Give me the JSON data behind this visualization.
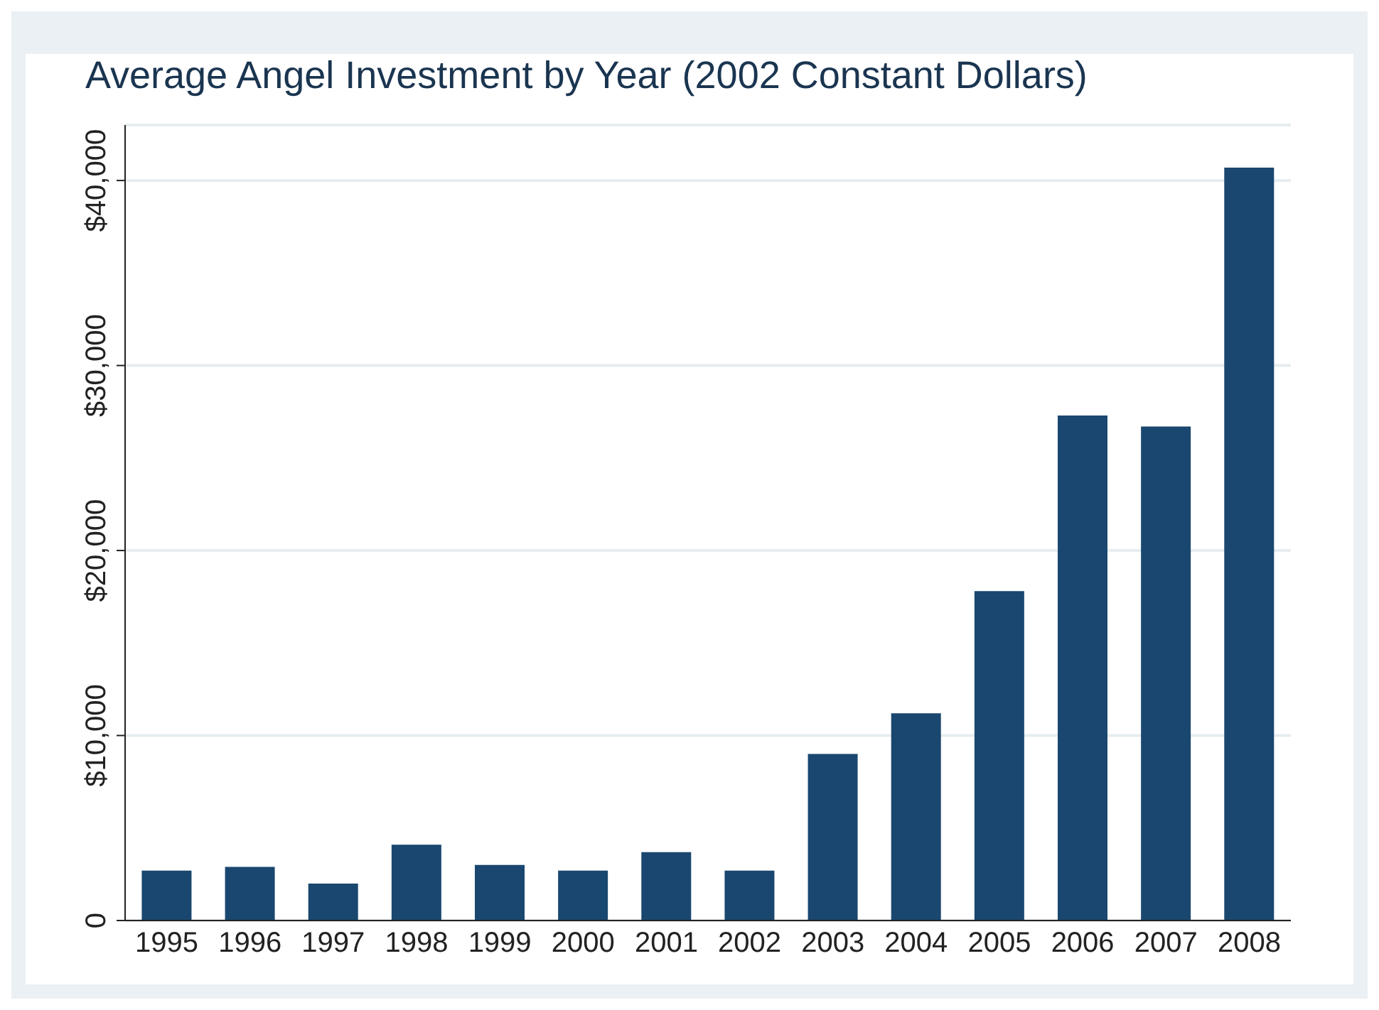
{
  "chart_data": {
    "type": "bar",
    "title": "Average Angel Investment by Year (2002 Constant Dollars)",
    "categories": [
      "1995",
      "1996",
      "1997",
      "1998",
      "1999",
      "2000",
      "2001",
      "2002",
      "2003",
      "2004",
      "2005",
      "2006",
      "2007",
      "2008"
    ],
    "values": [
      2700,
      2900,
      2000,
      4100,
      3000,
      2700,
      3700,
      2700,
      9000,
      11200,
      17800,
      27300,
      26700,
      40700
    ],
    "color": "#1a476f",
    "ylim": [
      0,
      43000
    ],
    "yticks": [
      {
        "value": 0,
        "label": "0"
      },
      {
        "value": 10000,
        "label": "$10,000"
      },
      {
        "value": 20000,
        "label": "$20,000"
      },
      {
        "value": 30000,
        "label": "$30,000"
      },
      {
        "value": 40000,
        "label": "$40,000"
      }
    ],
    "grid": "y",
    "legend": false
  }
}
